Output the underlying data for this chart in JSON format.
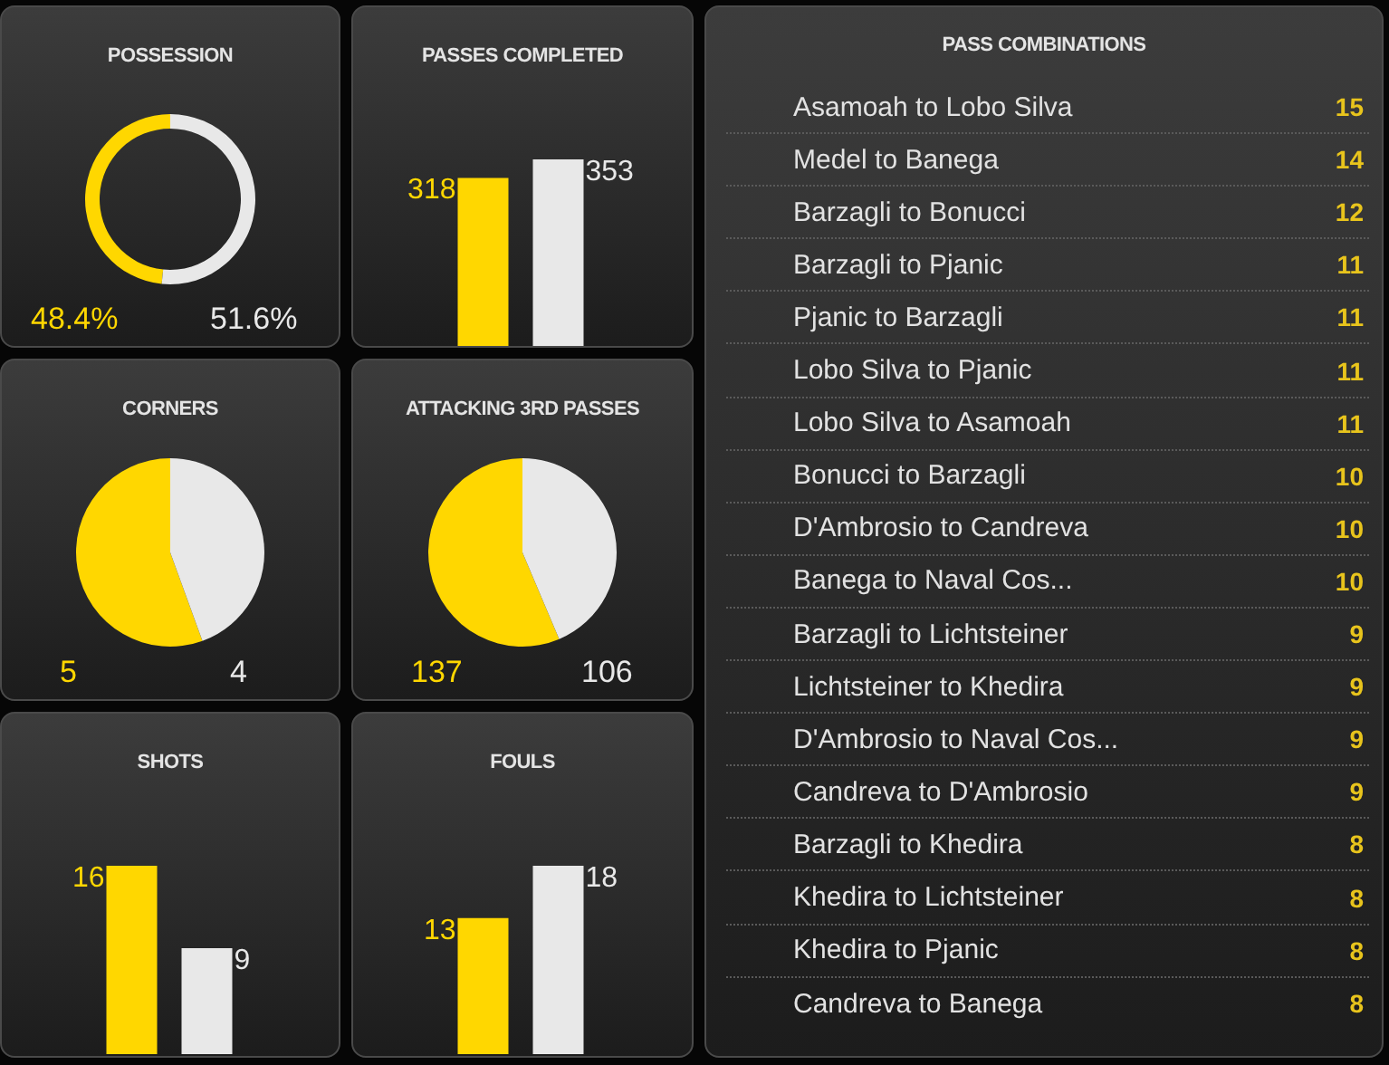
{
  "chart_data": [
    {
      "type": "donut",
      "title": "POSSESSION",
      "categories": [
        null,
        null
      ],
      "values": [
        48.4,
        51.6
      ],
      "colors": [
        "#ffd700",
        "#e8e8e8"
      ],
      "value_labels": [
        "48.4%",
        "51.6%"
      ]
    },
    {
      "type": "bar",
      "title": "PASSES COMPLETED",
      "categories": [
        null,
        null
      ],
      "values": [
        318,
        353
      ],
      "colors": [
        "#ffd700",
        "#e8e8e8"
      ],
      "data_labels": true,
      "tick_labels": false
    },
    {
      "type": "pie",
      "title": "CORNERS",
      "categories": [
        null,
        null
      ],
      "values": [
        5,
        4
      ],
      "colors": [
        "#ffd700",
        "#e8e8e8"
      ],
      "data_labels": true
    },
    {
      "type": "pie",
      "title": "ATTACKING 3RD PASSES",
      "categories": [
        null,
        null
      ],
      "values": [
        137,
        106
      ],
      "colors": [
        "#ffd700",
        "#e8e8e8"
      ],
      "data_labels": true
    },
    {
      "type": "bar",
      "title": "SHOTS",
      "categories": [
        null,
        null
      ],
      "values": [
        16,
        9
      ],
      "colors": [
        "#ffd700",
        "#e8e8e8"
      ],
      "data_labels": true,
      "tick_labels": false
    },
    {
      "type": "bar",
      "title": "FOULS",
      "categories": [
        null,
        null
      ],
      "values": [
        13,
        18
      ],
      "colors": [
        "#ffd700",
        "#e8e8e8"
      ],
      "data_labels": true,
      "tick_labels": false
    },
    {
      "type": "other",
      "title": "PASS COMBINATIONS",
      "categories": [
        "Asamoah to Lobo Silva",
        "Medel to Banega",
        "Barzagli to Bonucci",
        "Barzagli to Pjanic",
        "Pjanic to Barzagli",
        "Lobo Silva to Pjanic",
        "Lobo Silva to Asamoah",
        "Bonucci to Barzagli",
        "D'Ambrosio to Candreva",
        "Banega to Naval Cos...",
        "Barzagli to Lichtsteiner",
        "Lichtsteiner to Khedira",
        "D'Ambrosio to Naval Cos...",
        "Candreva to D'Ambrosio",
        "Barzagli to Khedira",
        "Khedira to Lichtsteiner",
        "Khedira to Pjanic",
        "Candreva to Banega"
      ],
      "values": [
        15,
        14,
        12,
        11,
        11,
        11,
        11,
        10,
        10,
        10,
        9,
        9,
        9,
        9,
        8,
        8,
        8,
        8
      ],
      "data_labels": true
    }
  ]
}
